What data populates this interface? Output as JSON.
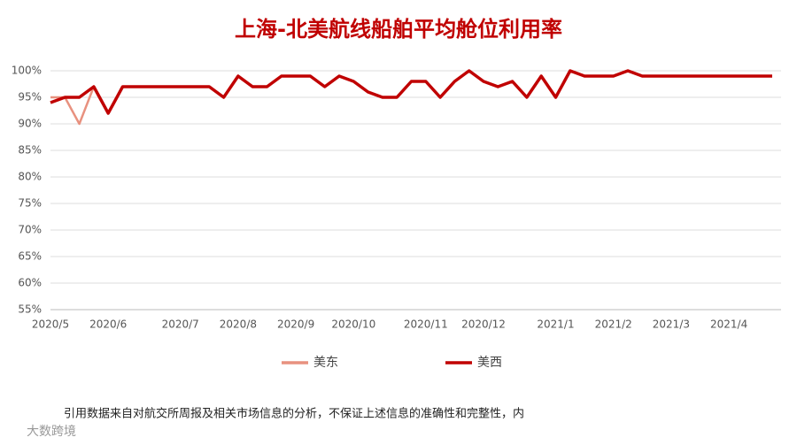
{
  "chart_data": {
    "type": "line",
    "title": "上海-北美航线船舶平均舱位利用率",
    "categories": [
      "2020/5",
      null,
      null,
      null,
      "2020/6",
      null,
      null,
      null,
      null,
      "2020/7",
      null,
      null,
      null,
      "2020/8",
      null,
      null,
      null,
      "2020/9",
      null,
      null,
      null,
      "2020/10",
      null,
      null,
      null,
      null,
      "2020/11",
      null,
      null,
      null,
      "2020/12",
      null,
      null,
      null,
      null,
      "2021/1",
      null,
      null,
      null,
      "2021/2",
      null,
      null,
      null,
      "2021/3",
      null,
      null,
      null,
      "2021/4",
      null,
      null,
      null
    ],
    "series": [
      {
        "name": "美东",
        "color": "#e8917f",
        "values": [
          95,
          95,
          90,
          97,
          92,
          97,
          97,
          97,
          97,
          97,
          97,
          97,
          95,
          99,
          97,
          97,
          99,
          99,
          99,
          97,
          99,
          98,
          96,
          95,
          95,
          98,
          98,
          95,
          98,
          100,
          98,
          97,
          98,
          95,
          99,
          95,
          100,
          99,
          99,
          99,
          100,
          99,
          99,
          99,
          99,
          99,
          99,
          99,
          99,
          99,
          99
        ]
      },
      {
        "name": "美西",
        "color": "#c00000",
        "values": [
          94,
          95,
          95,
          97,
          92,
          97,
          97,
          97,
          97,
          97,
          97,
          97,
          95,
          99,
          97,
          97,
          99,
          99,
          99,
          97,
          99,
          98,
          96,
          95,
          95,
          98,
          98,
          95,
          98,
          100,
          98,
          97,
          98,
          95,
          99,
          95,
          100,
          99,
          99,
          99,
          100,
          99,
          99,
          99,
          99,
          99,
          99,
          99,
          99,
          99,
          99
        ]
      }
    ],
    "ylim": [
      55,
      100
    ],
    "yticks": [
      {
        "value": 55,
        "label": "55%"
      },
      {
        "value": 60,
        "label": "60%"
      },
      {
        "value": 65,
        "label": "65%"
      },
      {
        "value": 70,
        "label": "70%"
      },
      {
        "value": 75,
        "label": "75%"
      },
      {
        "value": 80,
        "label": "80%"
      },
      {
        "value": 85,
        "label": "85%"
      },
      {
        "value": 90,
        "label": "90%"
      },
      {
        "value": 95,
        "label": "95%"
      },
      {
        "value": 100,
        "label": "100%"
      }
    ],
    "grid": true,
    "footnote": "引用数据来自对航交所周报及相关市场信息的分析，不保证上述信息的准确性和完整性，内",
    "watermark": "大数跨境"
  }
}
